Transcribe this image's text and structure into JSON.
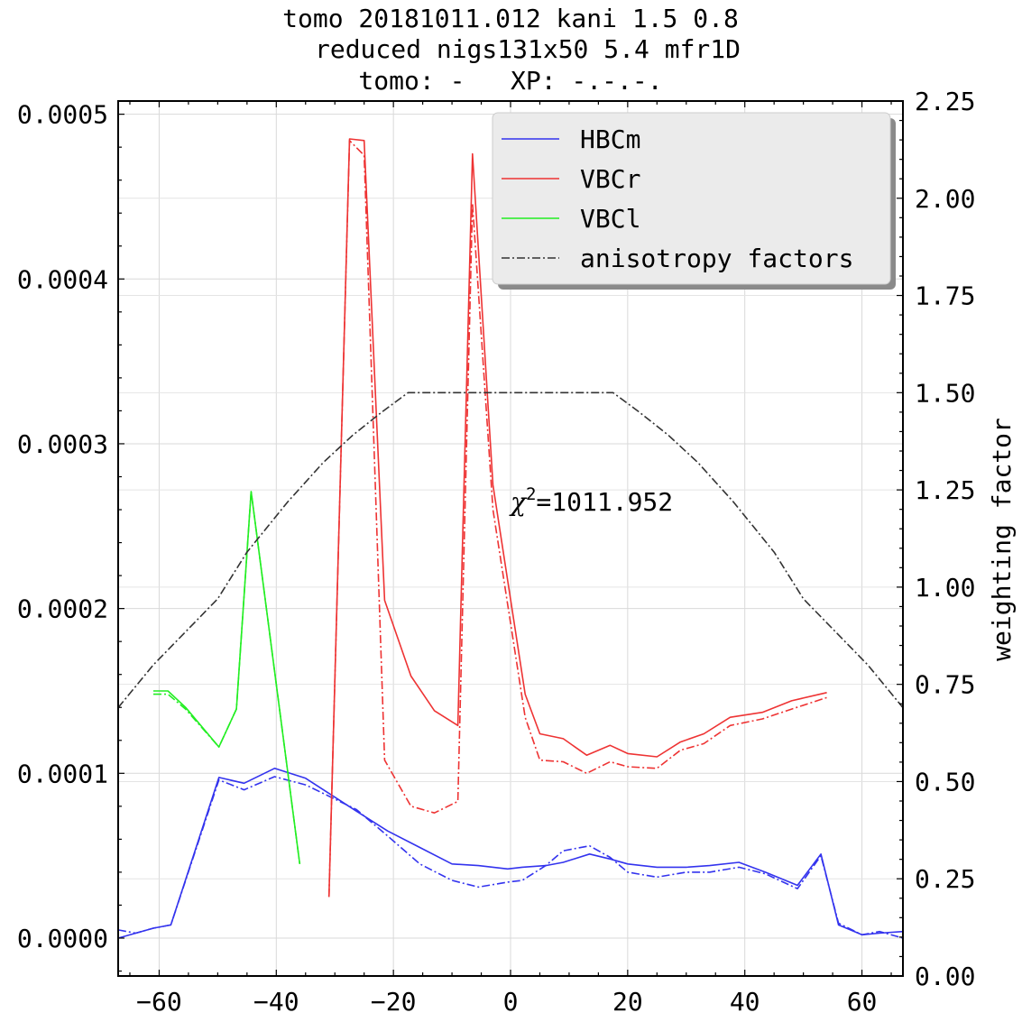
{
  "chart_data": {
    "type": "line",
    "title_lines": [
      "tomo 20181011.012 kani 1.5 0.8",
      "reduced nigs131x50 5.4 mfr1D",
      "tomo: -   XP: -.-.-."
    ],
    "xlabel": "",
    "ylabel": "",
    "y2label": "weighting factor",
    "xlim": [
      -67,
      67
    ],
    "ylim": [
      -2.3e-05,
      0.000508
    ],
    "y2lim": [
      0,
      2.25
    ],
    "xticks": [
      -60,
      -40,
      -20,
      0,
      20,
      40,
      60
    ],
    "xtick_labels": [
      "−60",
      "−40",
      "−20",
      "0",
      "20",
      "40",
      "60"
    ],
    "yticks": [
      0,
      0.0001,
      0.0002,
      0.0003,
      0.0004,
      0.0005
    ],
    "ytick_labels": [
      "0.0000",
      "0.0001",
      "0.0002",
      "0.0003",
      "0.0004",
      "0.0005"
    ],
    "y2ticks": [
      0,
      0.25,
      0.5,
      0.75,
      1.0,
      1.25,
      1.5,
      1.75,
      2.0,
      2.25
    ],
    "y2tick_labels": [
      "0.00",
      "0.25",
      "0.50",
      "0.75",
      "1.00",
      "1.25",
      "1.50",
      "1.75",
      "2.00",
      "2.25"
    ],
    "grid": true,
    "legend_position": "top-right",
    "annotation": {
      "prefix": "χ",
      "sup": "2",
      "text": "=1011.952",
      "x": 0,
      "y": 0.000265
    },
    "series": [
      {
        "name": "HBCm",
        "color": "#3333ee",
        "style": "solid",
        "axis": "left",
        "x": [
          -67,
          -64,
          -61,
          -58,
          -49.8,
          -45.5,
          -40.3,
          -35,
          -26.3,
          -21,
          -15.5,
          -10,
          -5.5,
          -0.5,
          2,
          6,
          9,
          13.5,
          17,
          20,
          25,
          30,
          34,
          39,
          43.5,
          49,
          53,
          56,
          60,
          63,
          67
        ],
        "y": [
          0,
          3e-06,
          6e-06,
          8e-06,
          9.75e-05,
          9.4e-05,
          0.000103,
          9.7e-05,
          7.7e-05,
          6.5e-05,
          5.5e-05,
          4.5e-05,
          4.4e-05,
          4.2e-05,
          4.3e-05,
          4.4e-05,
          4.6e-05,
          5.1e-05,
          4.8e-05,
          4.5e-05,
          4.3e-05,
          4.3e-05,
          4.4e-05,
          4.6e-05,
          4e-05,
          3.2e-05,
          5.1e-05,
          8e-06,
          2e-06,
          3e-06,
          4e-06
        ]
      },
      {
        "name": "HBCm model",
        "color": "#3333ee",
        "style": "dashdot",
        "axis": "left",
        "x": [
          -67,
          -64,
          -61,
          -58,
          -49.8,
          -45.5,
          -40.3,
          -35,
          -26.3,
          -21,
          -15.5,
          -10,
          -5.5,
          -0.5,
          2,
          6,
          9,
          13.5,
          17,
          20,
          25,
          30,
          34,
          39,
          43.5,
          49,
          53,
          56,
          60,
          63,
          67
        ],
        "y": [
          5e-06,
          3e-06,
          6e-06,
          8e-06,
          9.6e-05,
          9e-05,
          9.8e-05,
          9.3e-05,
          7.8e-05,
          6.2e-05,
          4.5e-05,
          3.5e-05,
          3.1e-05,
          3.4e-05,
          3.5e-05,
          4.4e-05,
          5.3e-05,
          5.6e-05,
          4.9e-05,
          4e-05,
          3.7e-05,
          4e-05,
          4e-05,
          4.3e-05,
          3.9e-05,
          3e-05,
          5e-05,
          9e-06,
          2e-06,
          4e-06,
          0
        ]
      },
      {
        "name": "VBCr",
        "color": "#ee3333",
        "style": "solid",
        "axis": "left",
        "x": [
          -31,
          -27.5,
          -25,
          -21.5,
          -17,
          -13,
          -9,
          -6.5,
          -3,
          2.5,
          5,
          9,
          13,
          17,
          20,
          25,
          29,
          33,
          37.5,
          43,
          48,
          54
        ],
        "y": [
          2.5e-05,
          0.000485,
          0.000484,
          0.000205,
          0.000159,
          0.000138,
          0.000129,
          0.000476,
          0.000275,
          0.000148,
          0.000124,
          0.000121,
          0.000111,
          0.000117,
          0.000112,
          0.00011,
          0.000119,
          0.000124,
          0.000134,
          0.000137,
          0.000144,
          0.000149
        ]
      },
      {
        "name": "VBCr model",
        "color": "#ee3333",
        "style": "dashdot",
        "axis": "left",
        "x": [
          -31,
          -27.5,
          -25,
          -21.5,
          -17,
          -13,
          -9,
          -6.5,
          -3,
          2.5,
          5,
          9,
          13,
          17,
          20,
          25,
          29,
          33,
          37.5,
          43,
          48,
          54
        ],
        "y": [
          2.5e-05,
          0.000484,
          0.000475,
          0.000108,
          8e-05,
          7.6e-05,
          8.3e-05,
          0.000446,
          0.00026,
          0.000134,
          0.000108,
          0.000107,
          0.0001,
          0.000107,
          0.000104,
          0.000103,
          0.000114,
          0.000118,
          0.000129,
          0.000133,
          0.000139,
          0.000146
        ]
      },
      {
        "name": "VBCl",
        "color": "#22ee22",
        "style": "solid",
        "axis": "left",
        "x": [
          -61,
          -58.5,
          -55.5,
          -49.8,
          -46.8,
          -44.3,
          -36
        ],
        "y": [
          0.00015,
          0.00015,
          0.00014,
          0.000116,
          0.000139,
          0.000271,
          4.5e-05
        ]
      },
      {
        "name": "VBCl model",
        "color": "#22ee22",
        "style": "dashdot",
        "axis": "left",
        "x": [
          -61,
          -58.5,
          -55.5,
          -49.8,
          -46.8,
          -44.3,
          -36
        ],
        "y": [
          0.000148,
          0.000148,
          0.000139,
          0.000116,
          0.000139,
          0.000271,
          4.5e-05
        ]
      },
      {
        "name": "anisotropy factors",
        "color": "#333333",
        "style": "dashdot",
        "axis": "right",
        "x": [
          -67,
          -61,
          -50,
          -45,
          -38,
          -32,
          -27,
          -22,
          -17.5,
          0,
          17.5,
          22,
          27,
          32,
          38,
          45,
          50,
          61,
          67
        ],
        "y": [
          0.69,
          0.8,
          0.97,
          1.09,
          1.22,
          1.32,
          1.39,
          1.45,
          1.5,
          1.5,
          1.5,
          1.45,
          1.39,
          1.32,
          1.22,
          1.09,
          0.97,
          0.8,
          0.69
        ]
      }
    ],
    "legend": [
      {
        "label": "HBCm",
        "color": "#3333ee",
        "style": "solid"
      },
      {
        "label": "VBCr",
        "color": "#ee3333",
        "style": "solid"
      },
      {
        "label": "VBCl",
        "color": "#22ee22",
        "style": "solid"
      },
      {
        "label": "anisotropy factors",
        "color": "#333333",
        "style": "dashdot"
      }
    ]
  }
}
